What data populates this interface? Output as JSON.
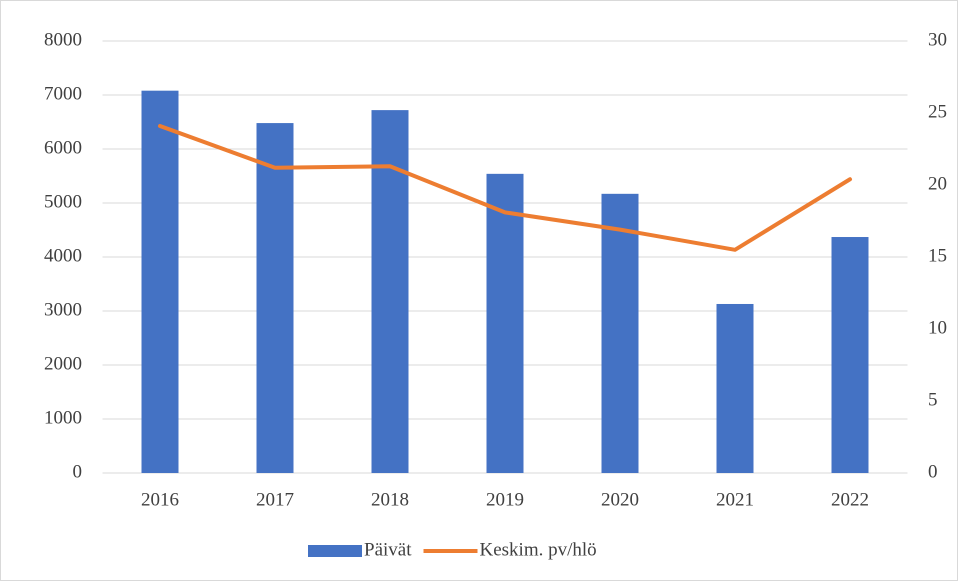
{
  "chart_data": {
    "type": "bar_line",
    "categories": [
      "2016",
      "2017",
      "2018",
      "2019",
      "2020",
      "2021",
      "2022"
    ],
    "series": [
      {
        "name": "Päivät",
        "color": "#4472c4",
        "type": "bar",
        "values": [
          7080,
          6480,
          6720,
          5540,
          5170,
          3130,
          4370
        ]
      },
      {
        "name": "Keskim. pv/hlö",
        "color": "#ed7d31",
        "type": "line",
        "axis": "y2",
        "values": [
          24.1,
          21.2,
          21.3,
          18.1,
          16.9,
          15.5,
          20.4
        ]
      }
    ],
    "ylim": [
      0,
      8000
    ],
    "yticks": [
      0,
      1000,
      2000,
      3000,
      4000,
      5000,
      6000,
      7000,
      8000
    ],
    "y2lim": [
      0,
      30
    ],
    "y2ticks": [
      0,
      5,
      10,
      15,
      20,
      25,
      30
    ],
    "grid": true,
    "legend": "bottom"
  }
}
